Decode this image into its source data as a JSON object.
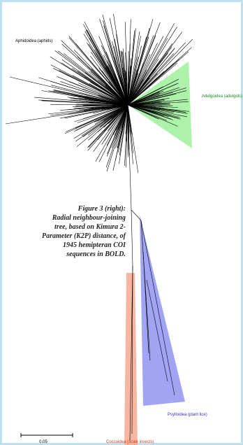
{
  "labels": {
    "aphids": "Aphidoidea (aphids)",
    "adelgids": "Adelgoidea (adelgids)",
    "psyllids": "Psylloidea (plant lice)",
    "coccids": "Coccoidea (scale insects)"
  },
  "caption": [
    "Figure 3 (right):",
    "Radial neighbour-joining",
    "tree, based on Kimura 2-",
    "Parameter (K2P) distance, of",
    "1945 hemipteran COI",
    "sequences in BOLD."
  ],
  "scale_label": "0.05"
}
